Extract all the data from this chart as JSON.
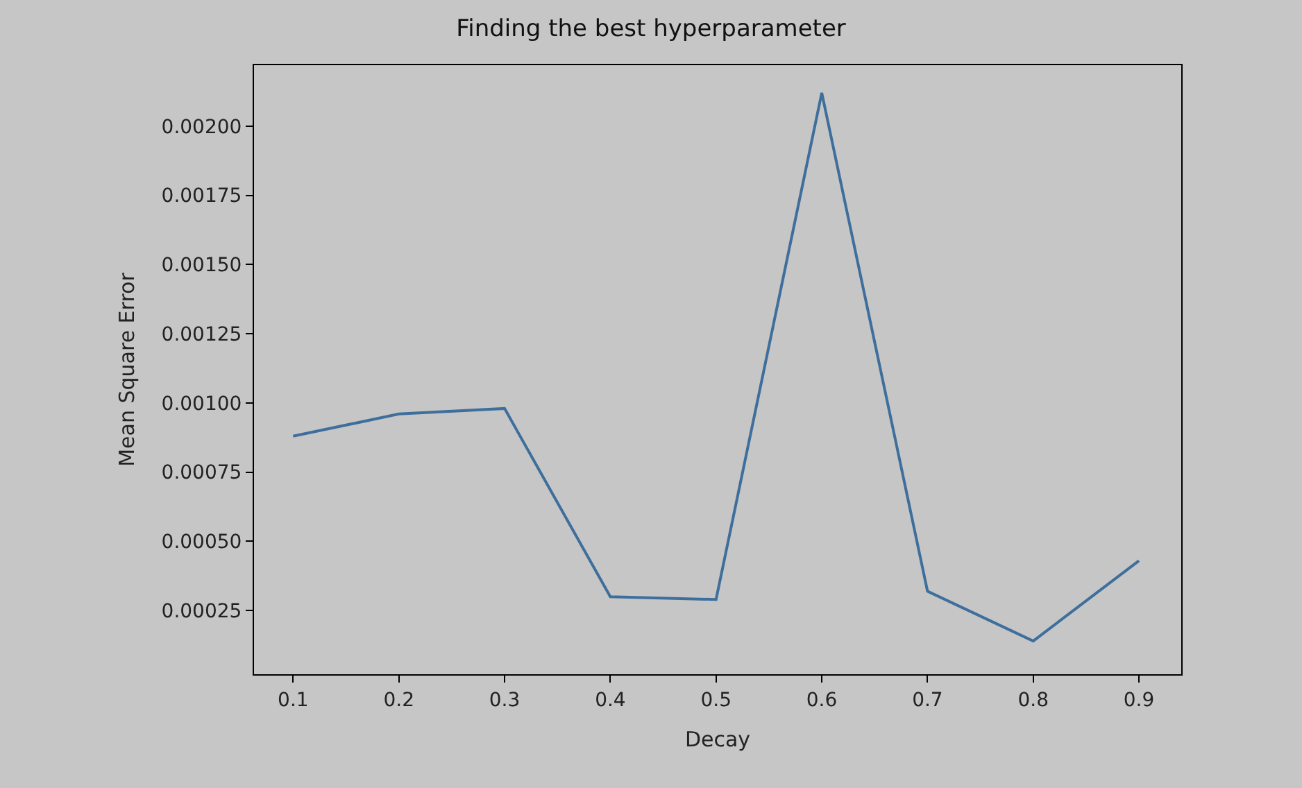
{
  "chart_data": {
    "type": "line",
    "title": "Finding the best hyperparameter",
    "xlabel": "Decay",
    "ylabel": "Mean Square Error",
    "x": [
      0.1,
      0.2,
      0.3,
      0.4,
      0.5,
      0.6,
      0.7,
      0.8,
      0.9
    ],
    "series": [
      {
        "color": "#3e6f9c",
        "values": [
          0.00088,
          0.00096,
          0.00098,
          0.0003,
          0.00029,
          0.00212,
          0.00032,
          0.00014,
          0.00043
        ]
      }
    ],
    "xlim": [
      0.063,
      0.94
    ],
    "ylim": [
      2e-05,
      0.00222
    ],
    "xticks": [
      0.1,
      0.2,
      0.3,
      0.4,
      0.5,
      0.6,
      0.7,
      0.8,
      0.9
    ],
    "yticks": [
      {
        "value": 0.00025,
        "label": "0.00025"
      },
      {
        "value": 0.0005,
        "label": "0.00050"
      },
      {
        "value": 0.00075,
        "label": "0.00075"
      },
      {
        "value": 0.001,
        "label": "0.00100"
      },
      {
        "value": 0.00125,
        "label": "0.00125"
      },
      {
        "value": 0.0015,
        "label": "0.00150"
      },
      {
        "value": 0.00175,
        "label": "0.00175"
      },
      {
        "value": 0.002,
        "label": "0.00200"
      }
    ],
    "grid": false
  }
}
